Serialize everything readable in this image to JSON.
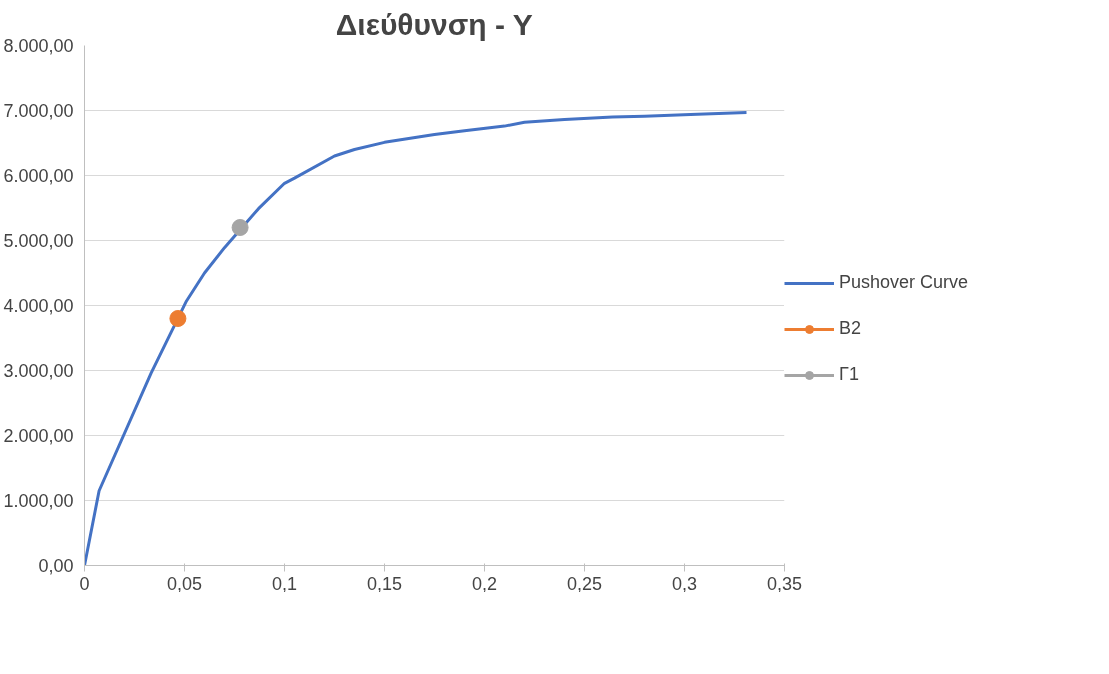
{
  "chart_data": {
    "type": "line",
    "title": "Διεύθυνση - Υ",
    "xlim": [
      0,
      0.35
    ],
    "xticks": [
      0,
      {
        "value": 0.05,
        "label": "0,05"
      },
      {
        "value": 0.1,
        "label": "0,1"
      },
      {
        "value": 0.15,
        "label": "0,15"
      },
      {
        "value": 0.2,
        "label": "0,2"
      },
      {
        "value": 0.25,
        "label": "0,25"
      },
      {
        "value": 0.3,
        "label": "0,3"
      },
      {
        "value": 0.35,
        "label": "0,35"
      }
    ],
    "ylim": [
      0,
      8000
    ],
    "yticks": [
      {
        "value": 0,
        "label": "0,00"
      },
      {
        "value": 1000,
        "label": "1.000,00"
      },
      {
        "value": 2000,
        "label": "2.000,00"
      },
      {
        "value": 3000,
        "label": "3.000,00"
      },
      {
        "value": 4000,
        "label": "4.000,00"
      },
      {
        "value": 5000,
        "label": "5.000,00"
      },
      {
        "value": 6000,
        "label": "6.000,00"
      },
      {
        "value": 7000,
        "label": "7.000,00"
      },
      {
        "value": 8000,
        "label": "8.000,00"
      }
    ],
    "grid": "y",
    "legend": "right",
    "series": [
      {
        "name": "Pushover Curve",
        "color": "#4472c4",
        "marker": "none",
        "x": [
          0,
          0.0073,
          0.0333,
          0.051,
          0.06,
          0.07,
          0.087,
          0.1,
          0.105,
          0.125,
          0.135,
          0.15,
          0.175,
          0.19,
          0.21,
          0.22,
          0.24,
          0.264,
          0.28,
          0.303,
          0.331
        ],
        "values": [
          0,
          1150,
          2960,
          4070,
          4500,
          4890,
          5490,
          5880,
          5960,
          6300,
          6400,
          6510,
          6630,
          6690,
          6760,
          6820,
          6860,
          6900,
          6910,
          6940,
          6970
        ]
      },
      {
        "name": "B2",
        "color": "#ed7d31",
        "marker": "circle",
        "x": [
          0.0467
        ],
        "values": [
          3800
        ]
      },
      {
        "name": "Γ1",
        "color": "#a5a5a5",
        "marker": "circle",
        "x": [
          0.0778
        ],
        "values": [
          5200
        ]
      }
    ]
  }
}
